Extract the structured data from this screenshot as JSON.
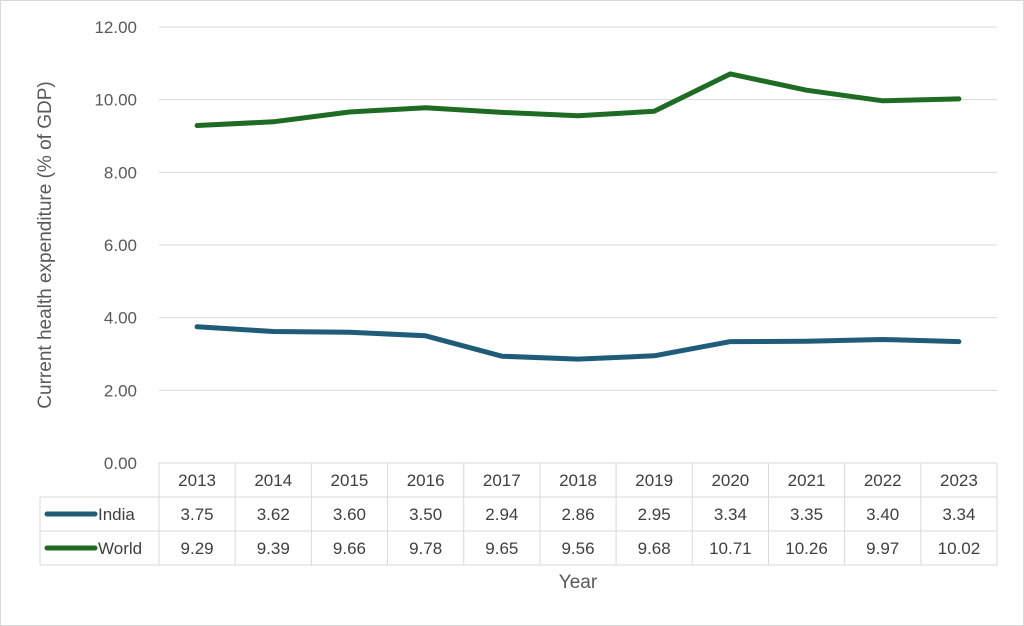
{
  "chart_data": {
    "type": "line",
    "xlabel": "Year",
    "ylabel": "Current health expenditure (% of GDP)",
    "ylim": [
      0,
      12
    ],
    "yticks": [
      "0.00",
      "2.00",
      "4.00",
      "6.00",
      "8.00",
      "10.00",
      "12.00"
    ],
    "grid": true,
    "legend": "data-table",
    "categories": [
      "2013",
      "2014",
      "2015",
      "2016",
      "2017",
      "2018",
      "2019",
      "2020",
      "2021",
      "2022",
      "2023"
    ],
    "series": [
      {
        "name": "India",
        "color": "#1f5c7a",
        "values": [
          3.75,
          3.62,
          3.6,
          3.5,
          2.94,
          2.86,
          2.95,
          3.34,
          3.35,
          3.4,
          3.34
        ],
        "labels": [
          "3.75",
          "3.62",
          "3.60",
          "3.50",
          "2.94",
          "2.86",
          "2.95",
          "3.34",
          "3.35",
          "3.40",
          "3.34"
        ]
      },
      {
        "name": "World",
        "color": "#1e6b24",
        "values": [
          9.29,
          9.39,
          9.66,
          9.78,
          9.65,
          9.56,
          9.68,
          10.71,
          10.26,
          9.97,
          10.02
        ],
        "labels": [
          "9.29",
          "9.39",
          "9.66",
          "9.78",
          "9.65",
          "9.56",
          "9.68",
          "10.71",
          "10.26",
          "9.97",
          "10.02"
        ]
      }
    ]
  }
}
